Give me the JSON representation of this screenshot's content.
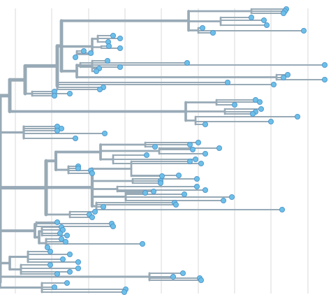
{
  "panel": {
    "title": "",
    "axis_labels": []
  },
  "colors": {
    "branch": "#98aab6",
    "tip_fill": "#6cbfe8",
    "tip_stroke": "#4a90c8",
    "grid": "#d9d9d9",
    "background": "#ffffff"
  },
  "legend": []
}
